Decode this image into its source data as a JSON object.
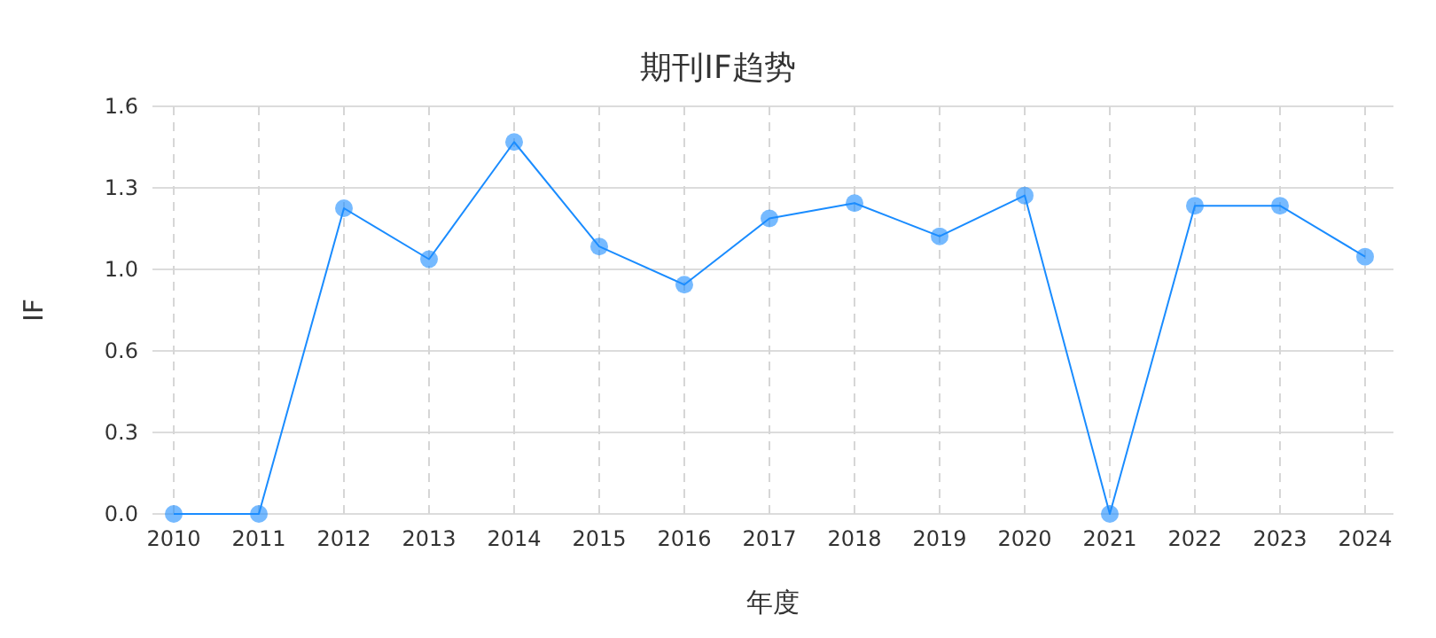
{
  "chart_data": {
    "type": "line",
    "title": "期刊IF趋势",
    "xlabel": "年度",
    "ylabel": "IF",
    "categories": [
      "2010",
      "2011",
      "2012",
      "2013",
      "2014",
      "2015",
      "2016",
      "2017",
      "2018",
      "2019",
      "2020",
      "2021",
      "2022",
      "2023",
      "2024"
    ],
    "series": [
      {
        "color": "#1a8cff",
        "values": [
          0,
          0,
          1.2,
          1.0,
          1.46,
          1.05,
          0.9,
          1.16,
          1.22,
          1.09,
          1.25,
          0,
          1.21,
          1.21,
          1.01
        ]
      }
    ],
    "ylim": [
      0,
      1.6
    ],
    "yticks": [
      {
        "value": 0,
        "label": "0.0"
      },
      {
        "value": 0.32,
        "label": "0.3"
      },
      {
        "value": 0.64,
        "label": "0.6"
      },
      {
        "value": 0.96,
        "label": "1.0"
      },
      {
        "value": 1.28,
        "label": "1.3"
      },
      {
        "value": 1.6,
        "label": "1.6"
      }
    ],
    "grid": true,
    "marker": "circle",
    "line_style": "solid"
  }
}
